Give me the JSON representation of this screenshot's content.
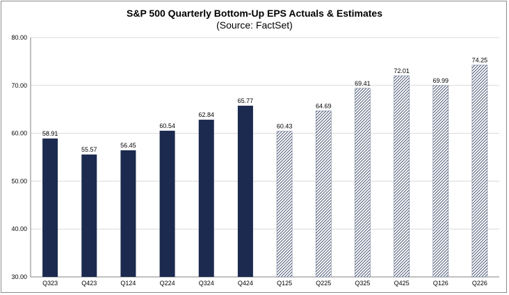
{
  "chart_data": {
    "type": "bar",
    "title": "S&P 500 Quarterly Bottom-Up EPS Actuals & Estimates",
    "subtitle": "(Source: FactSet)",
    "categories": [
      "Q323",
      "Q423",
      "Q124",
      "Q224",
      "Q324",
      "Q424",
      "Q125",
      "Q225",
      "Q325",
      "Q425",
      "Q126",
      "Q226"
    ],
    "values": [
      58.91,
      55.57,
      56.45,
      60.54,
      62.84,
      65.77,
      60.43,
      64.69,
      69.41,
      72.01,
      69.99,
      74.25
    ],
    "data_labels": [
      "58.91",
      "55.57",
      "56.45",
      "60.54",
      "62.84",
      "65.77",
      "60.43",
      "64.69",
      "69.41",
      "72.01",
      "69.99",
      "74.25"
    ],
    "bar_style": [
      "solid",
      "solid",
      "solid",
      "solid",
      "solid",
      "solid",
      "hatched",
      "hatched",
      "hatched",
      "hatched",
      "hatched",
      "hatched"
    ],
    "ylim": [
      30,
      80
    ],
    "yticks": [
      "30.00",
      "40.00",
      "50.00",
      "60.00",
      "70.00",
      "80.00"
    ],
    "xlabel": "",
    "ylabel": "",
    "grid": true,
    "legend": "none",
    "colors": {
      "actual": "#1b2a4e",
      "estimate_hatch": "#1b2a4e",
      "estimate_bg": "#ffffff",
      "grid": "#d9d9d9",
      "axis": "#808080"
    }
  }
}
